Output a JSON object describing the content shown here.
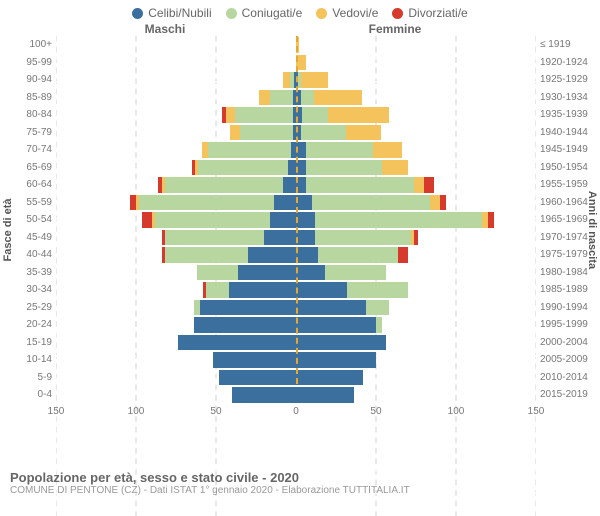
{
  "legend": [
    {
      "label": "Celibi/Nubili",
      "color": "#3b6f9e"
    },
    {
      "label": "Coniugati/e",
      "color": "#b7d6a0"
    },
    {
      "label": "Vedovi/e",
      "color": "#f4c35c"
    },
    {
      "label": "Divorziati/e",
      "color": "#d53a2d"
    }
  ],
  "headers": {
    "male": "Maschi",
    "female": "Femmine"
  },
  "ylabels": {
    "left": "Fasce di età",
    "right": "Anni di nascita"
  },
  "axis": {
    "min": 0,
    "max": 150,
    "ticks": [
      0,
      50,
      100,
      150
    ]
  },
  "grid_color": "#e0e0e0",
  "background_color": "#ffffff",
  "title": "Popolazione per età, sesso e stato civile - 2020",
  "subtitle": "COMUNE DI PENTONE (CZ) - Dati ISTAT 1° gennaio 2020 - Elaborazione TUTTITALIA.IT",
  "rows": [
    {
      "age": "100+",
      "birth": "≤ 1919",
      "m": {
        "cel": 0,
        "con": 0,
        "ved": 0,
        "div": 0
      },
      "f": {
        "cel": 0,
        "con": 0,
        "ved": 2,
        "div": 0
      }
    },
    {
      "age": "95-99",
      "birth": "1920-1924",
      "m": {
        "cel": 0,
        "con": 0,
        "ved": 0,
        "div": 0
      },
      "f": {
        "cel": 0,
        "con": 0,
        "ved": 6,
        "div": 0
      }
    },
    {
      "age": "90-94",
      "birth": "1925-1929",
      "m": {
        "cel": 1,
        "con": 3,
        "ved": 4,
        "div": 0
      },
      "f": {
        "cel": 1,
        "con": 2,
        "ved": 17,
        "div": 0
      }
    },
    {
      "age": "85-89",
      "birth": "1930-1934",
      "m": {
        "cel": 2,
        "con": 14,
        "ved": 7,
        "div": 0
      },
      "f": {
        "cel": 3,
        "con": 8,
        "ved": 30,
        "div": 0
      }
    },
    {
      "age": "80-84",
      "birth": "1935-1939",
      "m": {
        "cel": 2,
        "con": 36,
        "ved": 6,
        "div": 2
      },
      "f": {
        "cel": 4,
        "con": 16,
        "ved": 38,
        "div": 0
      }
    },
    {
      "age": "75-79",
      "birth": "1940-1944",
      "m": {
        "cel": 2,
        "con": 33,
        "ved": 6,
        "div": 0
      },
      "f": {
        "cel": 3,
        "con": 28,
        "ved": 22,
        "div": 0
      }
    },
    {
      "age": "70-74",
      "birth": "1945-1949",
      "m": {
        "cel": 3,
        "con": 52,
        "ved": 4,
        "div": 0
      },
      "f": {
        "cel": 6,
        "con": 42,
        "ved": 18,
        "div": 0
      }
    },
    {
      "age": "65-69",
      "birth": "1950-1954",
      "m": {
        "cel": 5,
        "con": 56,
        "ved": 2,
        "div": 2
      },
      "f": {
        "cel": 6,
        "con": 48,
        "ved": 16,
        "div": 0
      }
    },
    {
      "age": "60-64",
      "birth": "1955-1959",
      "m": {
        "cel": 8,
        "con": 74,
        "ved": 2,
        "div": 2
      },
      "f": {
        "cel": 6,
        "con": 68,
        "ved": 6,
        "div": 6
      }
    },
    {
      "age": "55-59",
      "birth": "1960-1964",
      "m": {
        "cel": 14,
        "con": 84,
        "ved": 2,
        "div": 4
      },
      "f": {
        "cel": 10,
        "con": 74,
        "ved": 6,
        "div": 4
      }
    },
    {
      "age": "50-54",
      "birth": "1965-1969",
      "m": {
        "cel": 16,
        "con": 72,
        "ved": 2,
        "div": 6
      },
      "f": {
        "cel": 12,
        "con": 104,
        "ved": 4,
        "div": 4
      }
    },
    {
      "age": "45-49",
      "birth": "1970-1974",
      "m": {
        "cel": 20,
        "con": 62,
        "ved": 0,
        "div": 2
      },
      "f": {
        "cel": 12,
        "con": 60,
        "ved": 2,
        "div": 2
      }
    },
    {
      "age": "40-44",
      "birth": "1975-1979",
      "m": {
        "cel": 30,
        "con": 52,
        "ved": 0,
        "div": 2
      },
      "f": {
        "cel": 14,
        "con": 50,
        "ved": 0,
        "div": 6
      }
    },
    {
      "age": "35-39",
      "birth": "1980-1984",
      "m": {
        "cel": 36,
        "con": 26,
        "ved": 0,
        "div": 0
      },
      "f": {
        "cel": 18,
        "con": 38,
        "ved": 0,
        "div": 0
      }
    },
    {
      "age": "30-34",
      "birth": "1985-1989",
      "m": {
        "cel": 42,
        "con": 14,
        "ved": 0,
        "div": 2
      },
      "f": {
        "cel": 32,
        "con": 38,
        "ved": 0,
        "div": 0
      }
    },
    {
      "age": "25-29",
      "birth": "1990-1994",
      "m": {
        "cel": 60,
        "con": 4,
        "ved": 0,
        "div": 0
      },
      "f": {
        "cel": 44,
        "con": 14,
        "ved": 0,
        "div": 0
      }
    },
    {
      "age": "20-24",
      "birth": "1995-1999",
      "m": {
        "cel": 64,
        "con": 0,
        "ved": 0,
        "div": 0
      },
      "f": {
        "cel": 50,
        "con": 4,
        "ved": 0,
        "div": 0
      }
    },
    {
      "age": "15-19",
      "birth": "2000-2004",
      "m": {
        "cel": 74,
        "con": 0,
        "ved": 0,
        "div": 0
      },
      "f": {
        "cel": 56,
        "con": 0,
        "ved": 0,
        "div": 0
      }
    },
    {
      "age": "10-14",
      "birth": "2005-2009",
      "m": {
        "cel": 52,
        "con": 0,
        "ved": 0,
        "div": 0
      },
      "f": {
        "cel": 50,
        "con": 0,
        "ved": 0,
        "div": 0
      }
    },
    {
      "age": "5-9",
      "birth": "2010-2014",
      "m": {
        "cel": 48,
        "con": 0,
        "ved": 0,
        "div": 0
      },
      "f": {
        "cel": 42,
        "con": 0,
        "ved": 0,
        "div": 0
      }
    },
    {
      "age": "0-4",
      "birth": "2015-2019",
      "m": {
        "cel": 40,
        "con": 0,
        "ved": 0,
        "div": 0
      },
      "f": {
        "cel": 36,
        "con": 0,
        "ved": 0,
        "div": 0
      }
    }
  ]
}
